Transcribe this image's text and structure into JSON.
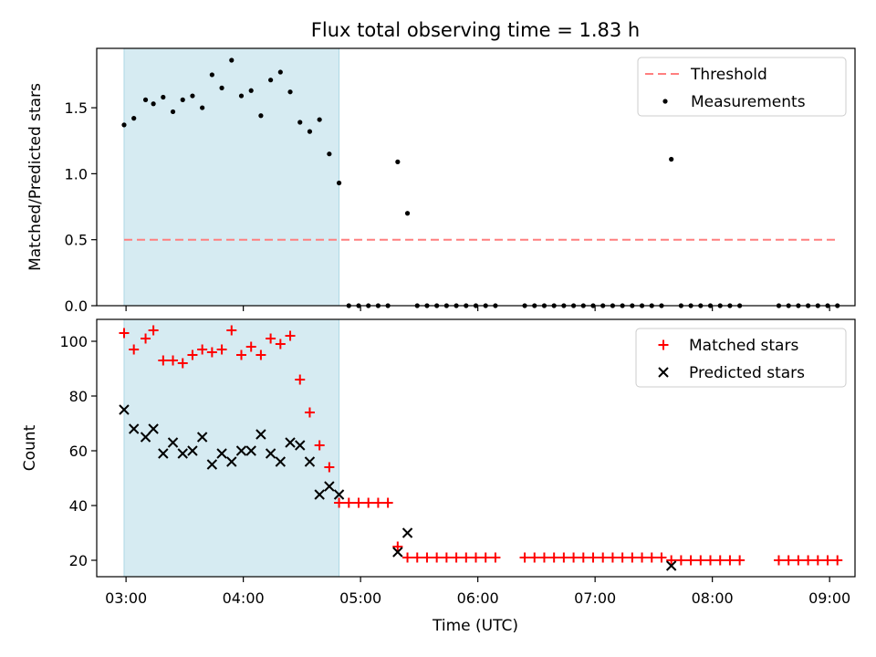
{
  "chart_data": {
    "type": "scatter",
    "title": "Flux total observing time = 1.83 h",
    "xlabel": "Time (UTC)",
    "x_ticks": [
      "03:00",
      "04:00",
      "05:00",
      "06:00",
      "07:00",
      "08:00",
      "09:00"
    ],
    "shaded_interval": {
      "start": "02:59",
      "end": "04:49",
      "color": "#add8e6"
    },
    "panels": [
      {
        "ylabel": "Matched/Predicted stars",
        "ylim": [
          0,
          1.95
        ],
        "y_ticks": [
          0.0,
          0.5,
          1.0,
          1.5
        ],
        "y_tick_labels": [
          "0.0",
          "0.5",
          "1.0",
          "1.5"
        ],
        "legend_position": "top-right",
        "series": [
          {
            "name": "Threshold",
            "kind": "line",
            "style": "dashed",
            "color": "#ff7f7f",
            "points": [
              [
                "02:59",
                0.5
              ],
              [
                "09:04",
                0.5
              ]
            ]
          },
          {
            "name": "Measurements",
            "kind": "scatter",
            "marker": "dot",
            "color": "#000000",
            "points": [
              [
                "02:59",
                1.37
              ],
              [
                "03:04",
                1.42
              ],
              [
                "03:10",
                1.56
              ],
              [
                "03:14",
                1.53
              ],
              [
                "03:19",
                1.58
              ],
              [
                "03:24",
                1.47
              ],
              [
                "03:29",
                1.56
              ],
              [
                "03:34",
                1.59
              ],
              [
                "03:39",
                1.5
              ],
              [
                "03:44",
                1.75
              ],
              [
                "03:49",
                1.65
              ],
              [
                "03:54",
                1.86
              ],
              [
                "03:59",
                1.59
              ],
              [
                "04:04",
                1.63
              ],
              [
                "04:09",
                1.44
              ],
              [
                "04:14",
                1.71
              ],
              [
                "04:19",
                1.77
              ],
              [
                "04:24",
                1.62
              ],
              [
                "04:29",
                1.39
              ],
              [
                "04:34",
                1.32
              ],
              [
                "04:39",
                1.41
              ],
              [
                "04:44",
                1.15
              ],
              [
                "04:49",
                0.93
              ],
              [
                "04:54",
                0
              ],
              [
                "04:59",
                0
              ],
              [
                "05:04",
                0
              ],
              [
                "05:09",
                0
              ],
              [
                "05:14",
                0
              ],
              [
                "05:19",
                1.09
              ],
              [
                "05:24",
                0.7
              ],
              [
                "05:29",
                0
              ],
              [
                "05:34",
                0
              ],
              [
                "05:39",
                0
              ],
              [
                "05:44",
                0
              ],
              [
                "05:49",
                0
              ],
              [
                "05:54",
                0
              ],
              [
                "05:59",
                0
              ],
              [
                "06:04",
                0
              ],
              [
                "06:09",
                0
              ],
              [
                "06:24",
                0
              ],
              [
                "06:29",
                0
              ],
              [
                "06:34",
                0
              ],
              [
                "06:39",
                0
              ],
              [
                "06:44",
                0
              ],
              [
                "06:49",
                0
              ],
              [
                "06:54",
                0
              ],
              [
                "06:59",
                0
              ],
              [
                "07:04",
                0
              ],
              [
                "07:09",
                0
              ],
              [
                "07:14",
                0
              ],
              [
                "07:19",
                0
              ],
              [
                "07:24",
                0
              ],
              [
                "07:29",
                0
              ],
              [
                "07:34",
                0
              ],
              [
                "07:39",
                1.11
              ],
              [
                "07:44",
                0
              ],
              [
                "07:49",
                0
              ],
              [
                "07:54",
                0
              ],
              [
                "07:59",
                0
              ],
              [
                "08:04",
                0
              ],
              [
                "08:09",
                0
              ],
              [
                "08:14",
                0
              ],
              [
                "08:34",
                0
              ],
              [
                "08:39",
                0
              ],
              [
                "08:44",
                0
              ],
              [
                "08:49",
                0
              ],
              [
                "08:54",
                0
              ],
              [
                "08:59",
                0
              ],
              [
                "09:04",
                0
              ]
            ]
          }
        ]
      },
      {
        "ylabel": "Count",
        "ylim": [
          14,
          108
        ],
        "y_ticks": [
          20,
          40,
          60,
          80,
          100
        ],
        "y_tick_labels": [
          "20",
          "40",
          "60",
          "80",
          "100"
        ],
        "legend_position": "top-right",
        "series": [
          {
            "name": "Matched stars",
            "kind": "scatter",
            "marker": "plus",
            "color": "#ff0000",
            "points": [
              [
                "02:59",
                103
              ],
              [
                "03:04",
                97
              ],
              [
                "03:10",
                101
              ],
              [
                "03:14",
                104
              ],
              [
                "03:19",
                93
              ],
              [
                "03:24",
                93
              ],
              [
                "03:29",
                92
              ],
              [
                "03:34",
                95
              ],
              [
                "03:39",
                97
              ],
              [
                "03:44",
                96
              ],
              [
                "03:49",
                97
              ],
              [
                "03:54",
                104
              ],
              [
                "03:59",
                95
              ],
              [
                "04:04",
                98
              ],
              [
                "04:09",
                95
              ],
              [
                "04:14",
                101
              ],
              [
                "04:19",
                99
              ],
              [
                "04:24",
                102
              ],
              [
                "04:29",
                86
              ],
              [
                "04:34",
                74
              ],
              [
                "04:39",
                62
              ],
              [
                "04:44",
                54
              ],
              [
                "04:49",
                41
              ],
              [
                "04:54",
                41
              ],
              [
                "04:59",
                41
              ],
              [
                "05:04",
                41
              ],
              [
                "05:09",
                41
              ],
              [
                "05:14",
                41
              ],
              [
                "05:19",
                25
              ],
              [
                "05:24",
                21
              ],
              [
                "05:29",
                21
              ],
              [
                "05:34",
                21
              ],
              [
                "05:39",
                21
              ],
              [
                "05:44",
                21
              ],
              [
                "05:49",
                21
              ],
              [
                "05:54",
                21
              ],
              [
                "05:59",
                21
              ],
              [
                "06:04",
                21
              ],
              [
                "06:09",
                21
              ],
              [
                "06:24",
                21
              ],
              [
                "06:29",
                21
              ],
              [
                "06:34",
                21
              ],
              [
                "06:39",
                21
              ],
              [
                "06:44",
                21
              ],
              [
                "06:49",
                21
              ],
              [
                "06:54",
                21
              ],
              [
                "06:59",
                21
              ],
              [
                "07:04",
                21
              ],
              [
                "07:09",
                21
              ],
              [
                "07:14",
                21
              ],
              [
                "07:19",
                21
              ],
              [
                "07:24",
                21
              ],
              [
                "07:29",
                21
              ],
              [
                "07:34",
                21
              ],
              [
                "07:39",
                20
              ],
              [
                "07:44",
                20
              ],
              [
                "07:49",
                20
              ],
              [
                "07:54",
                20
              ],
              [
                "07:59",
                20
              ],
              [
                "08:04",
                20
              ],
              [
                "08:09",
                20
              ],
              [
                "08:14",
                20
              ],
              [
                "08:34",
                20
              ],
              [
                "08:39",
                20
              ],
              [
                "08:44",
                20
              ],
              [
                "08:49",
                20
              ],
              [
                "08:54",
                20
              ],
              [
                "08:59",
                20
              ],
              [
                "09:04",
                20
              ]
            ]
          },
          {
            "name": "Predicted stars",
            "kind": "scatter",
            "marker": "x",
            "color": "#000000",
            "points": [
              [
                "02:59",
                75
              ],
              [
                "03:04",
                68
              ],
              [
                "03:10",
                65
              ],
              [
                "03:14",
                68
              ],
              [
                "03:19",
                59
              ],
              [
                "03:24",
                63
              ],
              [
                "03:29",
                59
              ],
              [
                "03:34",
                60
              ],
              [
                "03:39",
                65
              ],
              [
                "03:44",
                55
              ],
              [
                "03:49",
                59
              ],
              [
                "03:54",
                56
              ],
              [
                "03:59",
                60
              ],
              [
                "04:04",
                60
              ],
              [
                "04:09",
                66
              ],
              [
                "04:14",
                59
              ],
              [
                "04:19",
                56
              ],
              [
                "04:24",
                63
              ],
              [
                "04:29",
                62
              ],
              [
                "04:34",
                56
              ],
              [
                "04:39",
                44
              ],
              [
                "04:44",
                47
              ],
              [
                "04:49",
                44
              ],
              [
                "05:19",
                23
              ],
              [
                "05:24",
                30
              ],
              [
                "07:39",
                18
              ]
            ]
          }
        ]
      }
    ]
  }
}
